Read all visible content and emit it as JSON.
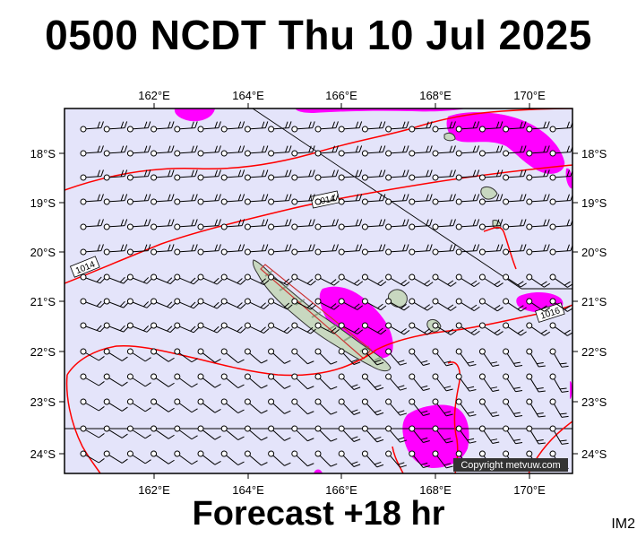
{
  "title": "0500 NCDT Thu 10 Jul 2025",
  "footer": "Forecast +18 hr",
  "im_tag": "IM2",
  "copyright": "Copyright metvuw.com",
  "colors": {
    "sea": "#e4e4fa",
    "rain": "#ff00ff",
    "isobar": "#ff0000",
    "land": "#c8d8c0",
    "barb": "#000000"
  },
  "map": {
    "lon_min": 160.0,
    "lon_max": 171.0,
    "lat_max": -17.0,
    "lat_min": -24.4,
    "lon_ticks": [
      "162°E",
      "164°E",
      "166°E",
      "168°E",
      "170°E"
    ],
    "lat_ticks": [
      "18°S",
      "19°S",
      "20°S",
      "21°S",
      "22°S",
      "23°S",
      "24°S"
    ],
    "isobar_labels": [
      "1014",
      "1014",
      "1016"
    ]
  }
}
